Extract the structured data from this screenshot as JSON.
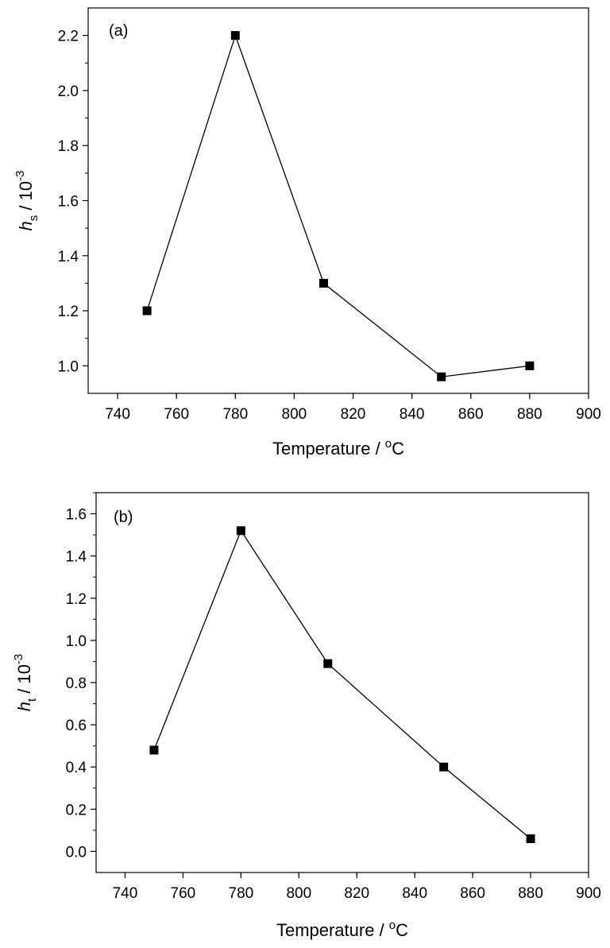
{
  "chart_data": [
    {
      "type": "line",
      "panel_label": "(a)",
      "xlabel": "Temperature / °C",
      "xlabel_main": "Temperature / ",
      "xlabel_sup": "o",
      "xlabel_unit": "C",
      "ylabel_symbol": "h",
      "ylabel_sub": "s",
      "ylabel_rest": " / 10",
      "ylabel_exp": "-3",
      "xlim": [
        730,
        900
      ],
      "ylim": [
        0.9,
        2.3
      ],
      "xticks": [
        "740",
        "760",
        "780",
        "800",
        "820",
        "840",
        "860",
        "880",
        "900"
      ],
      "yticks": [
        "1.0",
        "1.2",
        "1.4",
        "1.6",
        "1.8",
        "2.0",
        "2.2"
      ],
      "grid": false,
      "x": [
        750,
        780,
        810,
        850,
        880
      ],
      "y": [
        1.2,
        2.2,
        1.3,
        0.96,
        1.0
      ]
    },
    {
      "type": "line",
      "panel_label": "(b)",
      "xlabel": "Temperature / °C",
      "xlabel_main": "Temperature / ",
      "xlabel_sup": "o",
      "xlabel_unit": "C",
      "ylabel_symbol": "h",
      "ylabel_sub": "t",
      "ylabel_rest": " / 10",
      "ylabel_exp": "-3",
      "xlim": [
        730,
        900
      ],
      "ylim": [
        -0.1,
        1.7
      ],
      "xticks": [
        "740",
        "760",
        "780",
        "800",
        "820",
        "840",
        "860",
        "880",
        "900"
      ],
      "yticks": [
        "0.0",
        "0.2",
        "0.4",
        "0.6",
        "0.8",
        "1.0",
        "1.2",
        "1.4",
        "1.6"
      ],
      "grid": false,
      "x": [
        750,
        780,
        810,
        850,
        880
      ],
      "y": [
        0.48,
        1.52,
        0.89,
        0.4,
        0.06
      ]
    }
  ]
}
